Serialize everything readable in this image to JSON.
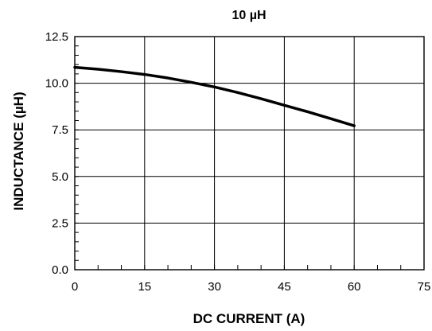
{
  "chart_data": {
    "type": "line",
    "title": "10 µH",
    "xlabel": "DC CURRENT (A)",
    "ylabel": "INDUCTANCE (µH)",
    "xlim": [
      0,
      75
    ],
    "ylim": [
      0,
      12.5
    ],
    "x_ticks": [
      "0",
      "15",
      "30",
      "45",
      "60",
      "75"
    ],
    "y_ticks": [
      "0.0",
      "2.5",
      "5.0",
      "7.5",
      "10.0",
      "12.5"
    ],
    "grid": true,
    "x": [
      0,
      5,
      10,
      15,
      20,
      25,
      30,
      35,
      40,
      45,
      50,
      55,
      60
    ],
    "series": [
      {
        "values": [
          10.85,
          10.75,
          10.62,
          10.47,
          10.28,
          10.05,
          9.8,
          9.5,
          9.17,
          8.82,
          8.47,
          8.1,
          7.72
        ]
      }
    ]
  }
}
